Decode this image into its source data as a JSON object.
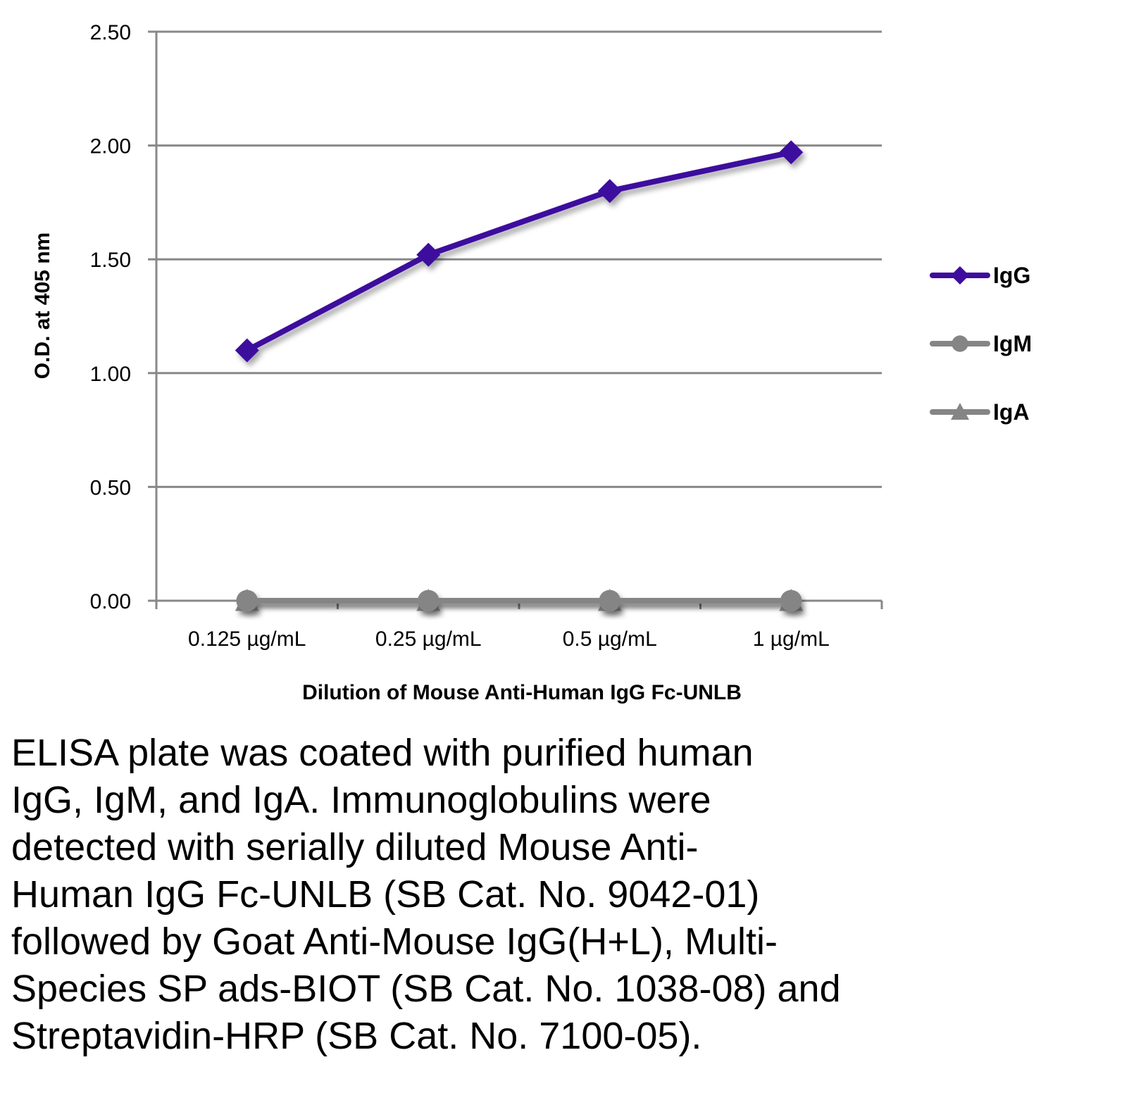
{
  "chart_data": {
    "type": "line",
    "title": "",
    "xlabel": "Dilution of Mouse Anti-Human IgG Fc-UNLB",
    "ylabel": "O.D. at 405 nm",
    "categories": [
      "0.125 µg/mL",
      "0.25 µg/mL",
      "0.5 µg/mL",
      "1 µg/mL"
    ],
    "ylim": [
      0,
      2.5
    ],
    "yticks": [
      "0.00",
      "0.50",
      "1.00",
      "1.50",
      "2.00",
      "2.50"
    ],
    "ytick_values": [
      0,
      0.5,
      1.0,
      1.5,
      2.0,
      2.5
    ],
    "grid": true,
    "legend_position": "right",
    "series": [
      {
        "name": "IgG",
        "values": [
          1.1,
          1.52,
          1.8,
          1.97
        ],
        "color": "#3d0c9e",
        "marker": "diamond"
      },
      {
        "name": "IgM",
        "values": [
          0.0,
          0.0,
          0.0,
          0.0
        ],
        "color": "#858585",
        "marker": "circle"
      },
      {
        "name": "IgA",
        "values": [
          0.0,
          0.0,
          0.0,
          0.0
        ],
        "color": "#858585",
        "marker": "triangle"
      }
    ]
  },
  "caption": {
    "lines": [
      "ELISA plate was coated with purified human",
      "IgG, IgM, and IgA.  Immunoglobulins were",
      "detected with serially diluted Mouse Anti-",
      "Human IgG Fc-UNLB (SB Cat. No. 9042-01)",
      "followed by Goat Anti-Mouse IgG(H+L), Multi-",
      "Species SP ads-BIOT (SB Cat. No. 1038-08) and",
      "Streptavidin-HRP (SB Cat. No. 7100-05)."
    ]
  }
}
